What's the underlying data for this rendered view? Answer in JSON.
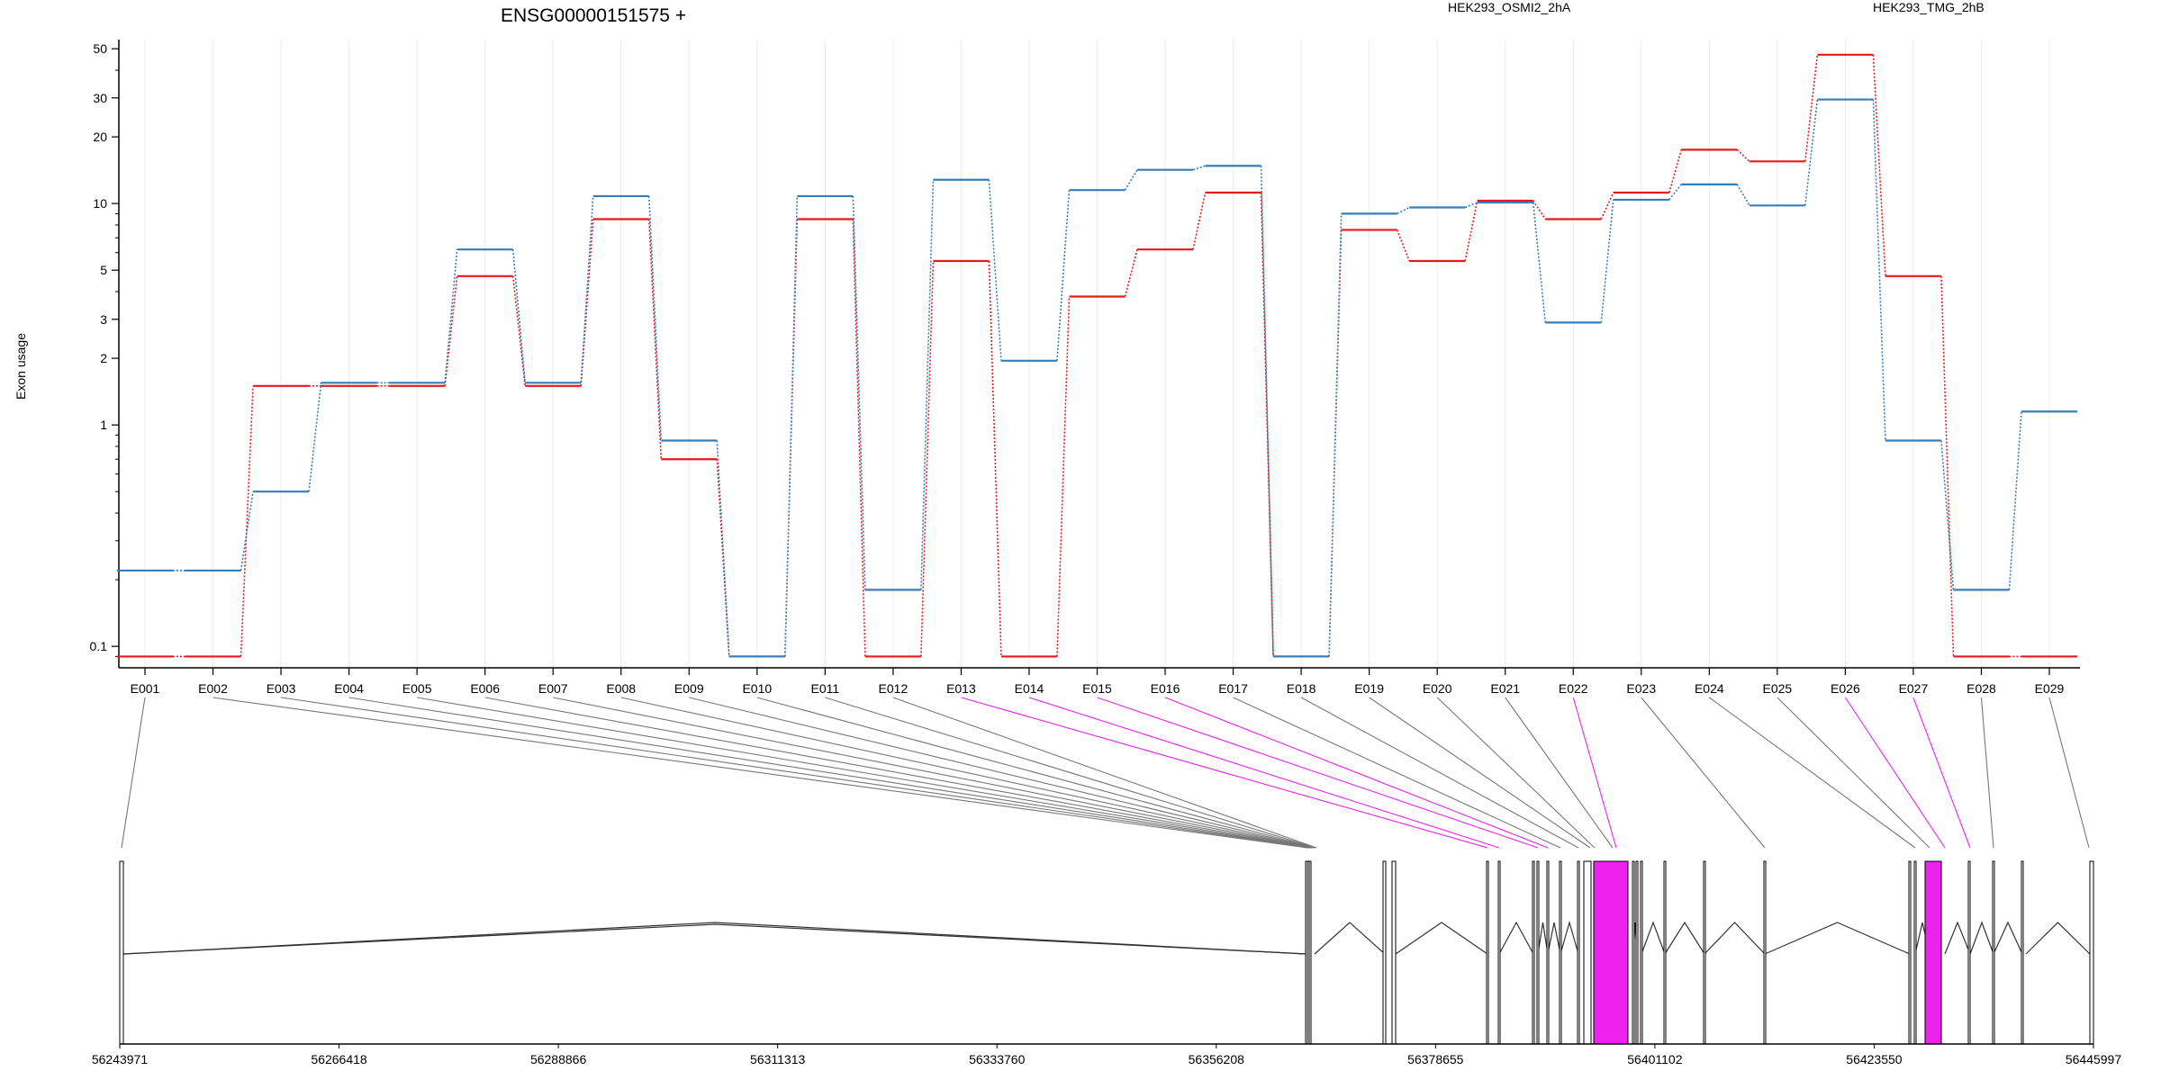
{
  "chart_data": {
    "type": "line",
    "title": "ENSG00000151575 +",
    "ylabel": "Exon usage",
    "xlabel": "",
    "y_scale": "log",
    "ylim": [
      0.08,
      55
    ],
    "y_ticks": [
      {
        "value": 0.1,
        "label": "0.1"
      },
      {
        "value": 1,
        "label": "1"
      },
      {
        "value": 2,
        "label": "2"
      },
      {
        "value": 3,
        "label": "3"
      },
      {
        "value": 5,
        "label": "5"
      },
      {
        "value": 10,
        "label": "10"
      },
      {
        "value": 20,
        "label": "20"
      },
      {
        "value": 30,
        "label": "30"
      },
      {
        "value": 50,
        "label": "50"
      }
    ],
    "grid": "vertical",
    "legend_position": "top-right",
    "categories": [
      "E001",
      "E002",
      "E003",
      "E004",
      "E005",
      "E006",
      "E007",
      "E008",
      "E009",
      "E010",
      "E011",
      "E012",
      "E013",
      "E014",
      "E015",
      "E016",
      "E017",
      "E018",
      "E019",
      "E020",
      "E021",
      "E022",
      "E023",
      "E024",
      "E025",
      "E026",
      "E027",
      "E028",
      "E029"
    ],
    "series": [
      {
        "name": "HEK293_OSMI2_2hA",
        "color": "#e41a1c",
        "values": [
          0.09,
          0.09,
          1.5,
          1.5,
          1.5,
          4.7,
          1.5,
          8.5,
          0.7,
          0.09,
          8.5,
          0.09,
          5.5,
          0.09,
          3.8,
          6.2,
          11.2,
          0.09,
          7.6,
          5.5,
          10.3,
          8.5,
          11.2,
          17.5,
          15.5,
          47,
          4.7,
          0.09,
          0.09
        ]
      },
      {
        "name": "HEK293_TMG_2hB",
        "color": "#377eb8",
        "values": [
          0.22,
          0.22,
          0.5,
          1.55,
          1.55,
          6.2,
          1.55,
          10.8,
          0.85,
          0.09,
          10.8,
          0.18,
          12.8,
          1.95,
          11.5,
          14.2,
          14.8,
          0.09,
          9.0,
          9.6,
          10.1,
          2.9,
          10.4,
          12.2,
          9.8,
          29.5,
          0.85,
          0.18,
          1.15
        ]
      }
    ],
    "gene_model": {
      "genomic_ticks": [
        "56243971",
        "56266418",
        "56288866",
        "56311313",
        "56333760",
        "56356208",
        "56378655",
        "56401102",
        "56423550",
        "56445997"
      ],
      "highlighted_exons": [
        "E013",
        "E014",
        "E015",
        "E016",
        "E022",
        "E026",
        "E027"
      ],
      "highlight_color": "#ee22ee"
    }
  }
}
